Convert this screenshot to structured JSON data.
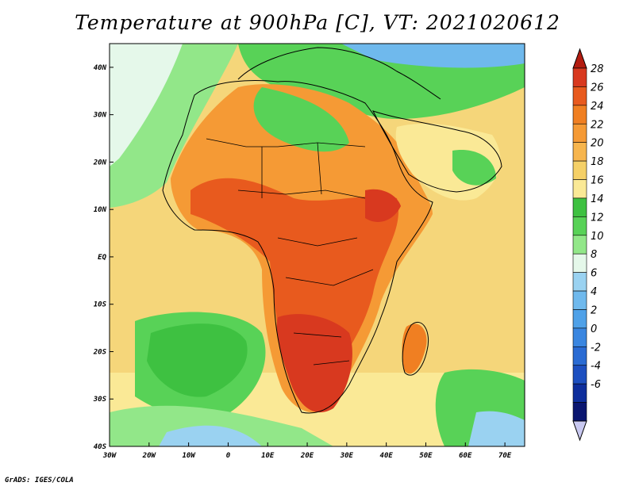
{
  "title": "Temperature at 900hPa [C], VT: 2021020612",
  "credit": "GrADS: IGES/COLA",
  "map": {
    "projection": "latlon",
    "lon_range": [
      -30,
      75
    ],
    "lat_range": [
      -40,
      45
    ],
    "lon_ticks": [
      {
        "value": -30,
        "label": "30W"
      },
      {
        "value": -20,
        "label": "20W"
      },
      {
        "value": -10,
        "label": "10W"
      },
      {
        "value": 0,
        "label": "0"
      },
      {
        "value": 10,
        "label": "10E"
      },
      {
        "value": 20,
        "label": "20E"
      },
      {
        "value": 30,
        "label": "30E"
      },
      {
        "value": 40,
        "label": "40E"
      },
      {
        "value": 50,
        "label": "50E"
      },
      {
        "value": 60,
        "label": "60E"
      },
      {
        "value": 70,
        "label": "70E"
      }
    ],
    "lat_ticks": [
      {
        "value": 40,
        "label": "40N"
      },
      {
        "value": 30,
        "label": "30N"
      },
      {
        "value": 20,
        "label": "20N"
      },
      {
        "value": 10,
        "label": "10N"
      },
      {
        "value": 0,
        "label": "EQ"
      },
      {
        "value": -10,
        "label": "10S"
      },
      {
        "value": -20,
        "label": "20S"
      },
      {
        "value": -30,
        "label": "30S"
      },
      {
        "value": -40,
        "label": "40S"
      }
    ],
    "ocean_color": "#f5d67a",
    "coastline_color": "#000000"
  },
  "colorbar": {
    "levels": [
      "28",
      "26",
      "24",
      "22",
      "20",
      "18",
      "16",
      "14",
      "12",
      "10",
      "8",
      "6",
      "4",
      "2",
      "0",
      "-2",
      "-4",
      "-6"
    ],
    "colors": [
      "#d8391f",
      "#e85a1e",
      "#f07f22",
      "#f59a35",
      "#f7b54d",
      "#f5d067",
      "#fae996",
      "#3ec141",
      "#58d257",
      "#92e789",
      "#e5f8ea",
      "#9ad2f1",
      "#6fb9ed",
      "#4fa1e8",
      "#3a86e0",
      "#2a6bd3",
      "#1d4fc0",
      "#0e2e9c",
      "#0a1670"
    ],
    "top_arrow_color": "#b31c10",
    "bottom_arrow_color": "#c8c8f0"
  }
}
